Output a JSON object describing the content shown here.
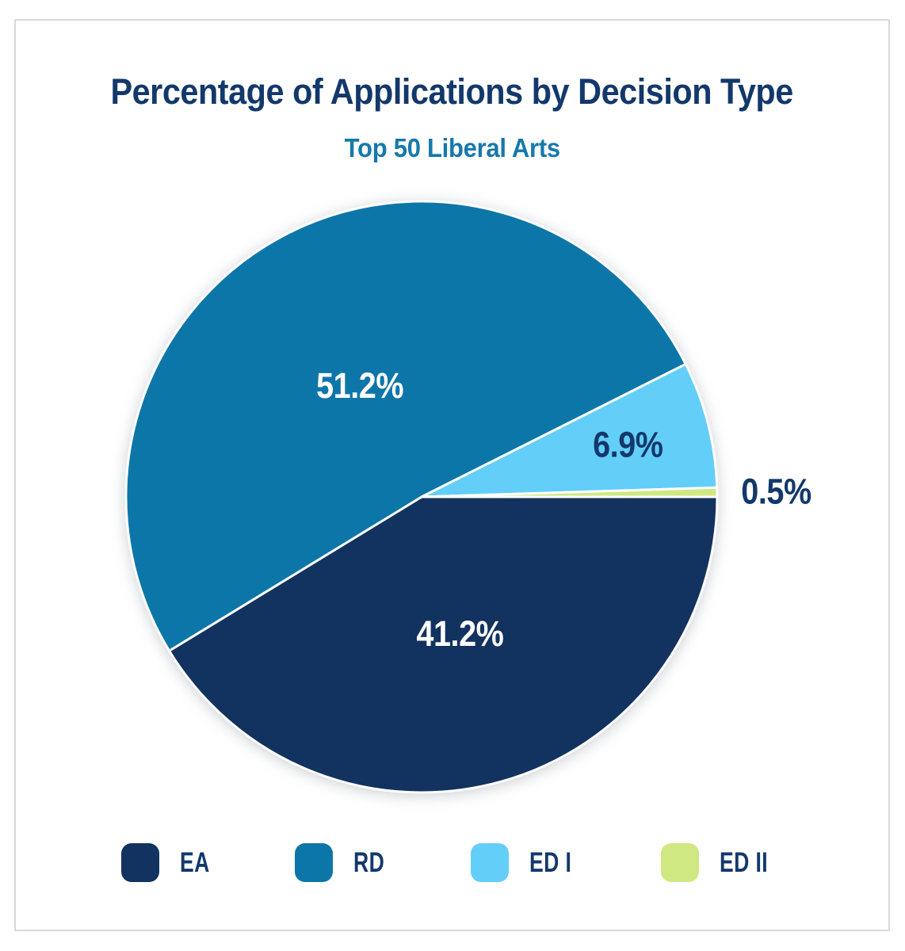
{
  "card": {
    "title": "Percentage of Applications by Decision Type",
    "subtitle": "Top 50 Liberal Arts"
  },
  "colors": {
    "title_text": "#13386b",
    "subtitle_text": "#1579ab",
    "label_dark": "#13386b",
    "label_light": "#ffffff",
    "slice_border": "#ffffff",
    "card_border": "#d8d8d8",
    "background": "#ffffff"
  },
  "chart_data": {
    "type": "pie",
    "title": "Percentage of Applications by Decision Type",
    "subtitle": "Top 50 Liberal Arts",
    "start_angle_deg": 0,
    "direction": "clockwise",
    "total": 99.8,
    "slices": [
      {
        "label": "EA",
        "value": 41.2,
        "label_text": "41.2%",
        "color": "#12325f",
        "text_color": "#ffffff",
        "label_placement": "inside"
      },
      {
        "label": "RD",
        "value": 51.2,
        "label_text": "51.2%",
        "color": "#0d76a8",
        "text_color": "#ffffff",
        "label_placement": "inside"
      },
      {
        "label": "ED I",
        "value": 6.9,
        "label_text": "6.9%",
        "color": "#63cef8",
        "text_color": "#13386b",
        "label_placement": "inside"
      },
      {
        "label": "ED II",
        "value": 0.5,
        "label_text": "0.5%",
        "color": "#cfe882",
        "text_color": "#13386b",
        "label_placement": "outside"
      }
    ],
    "legend": {
      "position": "bottom",
      "items": [
        "EA",
        "RD",
        "ED I",
        "ED II"
      ]
    }
  }
}
